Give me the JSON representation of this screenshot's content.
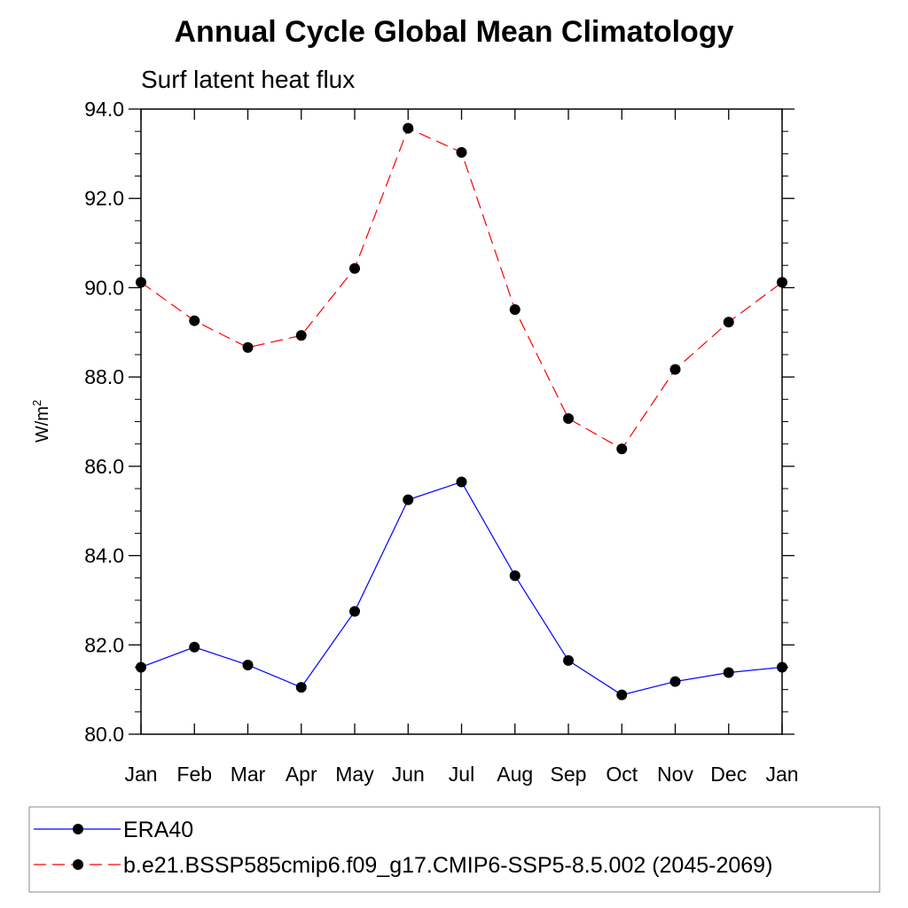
{
  "chart_data": {
    "type": "line",
    "title": "Annual Cycle Global Mean Climatology",
    "subtitle": "Surf latent heat flux",
    "ylabel": "W/m",
    "ylabel_sup": "2",
    "xlabel": "",
    "categories": [
      "Jan",
      "Feb",
      "Mar",
      "Apr",
      "May",
      "Jun",
      "Jul",
      "Aug",
      "Sep",
      "Oct",
      "Nov",
      "Dec",
      "Jan"
    ],
    "ylim": [
      80.0,
      94.0
    ],
    "yticks": [
      "80.0",
      "82.0",
      "84.0",
      "86.0",
      "88.0",
      "90.0",
      "92.0",
      "94.0"
    ],
    "grid": false,
    "legend_position": "bottom",
    "series": [
      {
        "name": "ERA40",
        "color": "#0000ff",
        "dash": "solid",
        "values": [
          81.5,
          81.95,
          81.55,
          81.05,
          82.75,
          85.25,
          85.65,
          83.55,
          81.65,
          80.88,
          81.18,
          81.38,
          81.5
        ]
      },
      {
        "name": "b.e21.BSSP585cmip6.f09_g17.CMIP6-SSP5-8.5.002 (2045-2069)",
        "color": "#ff0000",
        "dash": "dashed",
        "values": [
          90.12,
          89.26,
          88.66,
          88.93,
          90.43,
          93.57,
          93.03,
          89.51,
          87.07,
          86.39,
          88.17,
          89.23,
          90.12
        ]
      }
    ]
  }
}
